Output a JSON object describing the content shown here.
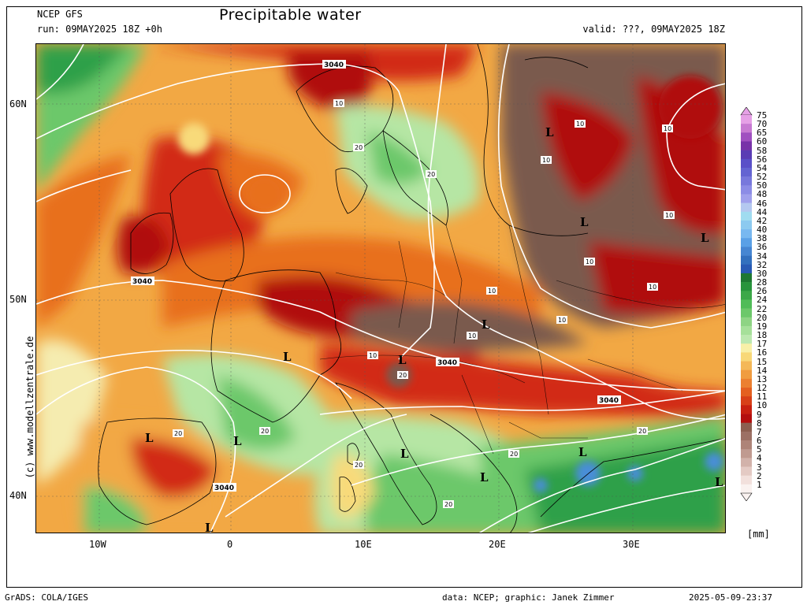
{
  "header": {
    "model": "NCEP GFS",
    "title": "Precipitable water",
    "run": "run: 09MAY2025 18Z +0h",
    "valid": "valid: ???, 09MAY2025 18Z"
  },
  "map": {
    "lat_labels": [
      "60N",
      "50N",
      "40N"
    ],
    "lon_labels": [
      "10W",
      "0",
      "10E",
      "20E",
      "30E"
    ],
    "contour_labels": [
      "3040",
      "3040",
      "3040",
      "3040",
      "3040",
      "10",
      "10",
      "10",
      "10",
      "10",
      "10",
      "10",
      "10",
      "10",
      "10",
      "10",
      "20",
      "20",
      "20",
      "20",
      "20",
      "20",
      "20",
      "20",
      "20"
    ],
    "low_marker": "L",
    "colors": {
      "dry_brown": "#7a5a4e",
      "dark_red": "#b00e0e",
      "red": "#d22a16",
      "orange": "#e8701c",
      "light_orange": "#f2a844",
      "yellow": "#f8da7a",
      "pale_yellow": "#f5ecb0",
      "light_green": "#b6e6a4",
      "green": "#6cc86a",
      "dark_green": "#2ea04a",
      "blue": "#4a8ed8",
      "sea_border": "#000000",
      "contour": "#ffffff"
    }
  },
  "colorbar": {
    "labels": [
      "75",
      "70",
      "65",
      "60",
      "58",
      "56",
      "54",
      "52",
      "50",
      "48",
      "46",
      "44",
      "42",
      "40",
      "38",
      "36",
      "34",
      "32",
      "30",
      "28",
      "26",
      "24",
      "22",
      "20",
      "19",
      "18",
      "17",
      "16",
      "15",
      "14",
      "13",
      "12",
      "11",
      "10",
      "9",
      "8",
      "7",
      "6",
      "5",
      "4",
      "3",
      "2",
      "1"
    ],
    "colors": [
      "#e6a0e6",
      "#c87ad2",
      "#a050c0",
      "#7832a8",
      "#5a3cb4",
      "#5a50c8",
      "#6464d2",
      "#7878dc",
      "#8c8ce6",
      "#a0a0ec",
      "#b4c8f0",
      "#a0dcf0",
      "#8ccaf0",
      "#78b8f0",
      "#5aa0e6",
      "#4686d2",
      "#3270be",
      "#285ab4",
      "#1e7832",
      "#28943c",
      "#3ca848",
      "#50bc58",
      "#6cc86a",
      "#8ed484",
      "#a6e09a",
      "#bce8b0",
      "#f8f0a8",
      "#f8d878",
      "#f4b858",
      "#f09c40",
      "#ec8030",
      "#e46020",
      "#d84018",
      "#c82010",
      "#b40e0e",
      "#8c5e50",
      "#9c7064",
      "#ae8478",
      "#c09a90",
      "#d2b2aa",
      "#e4cac4",
      "#f2e0dc",
      "#faf2f0"
    ],
    "unit": "[mm]"
  },
  "footer": {
    "side_credit": "(c) www.modellzentrale.de",
    "grads": "GrADS: COLA/IGES",
    "credit": "data: NCEP; graphic: Janek Zimmer",
    "timestamp": "2025-05-09-23:37"
  }
}
